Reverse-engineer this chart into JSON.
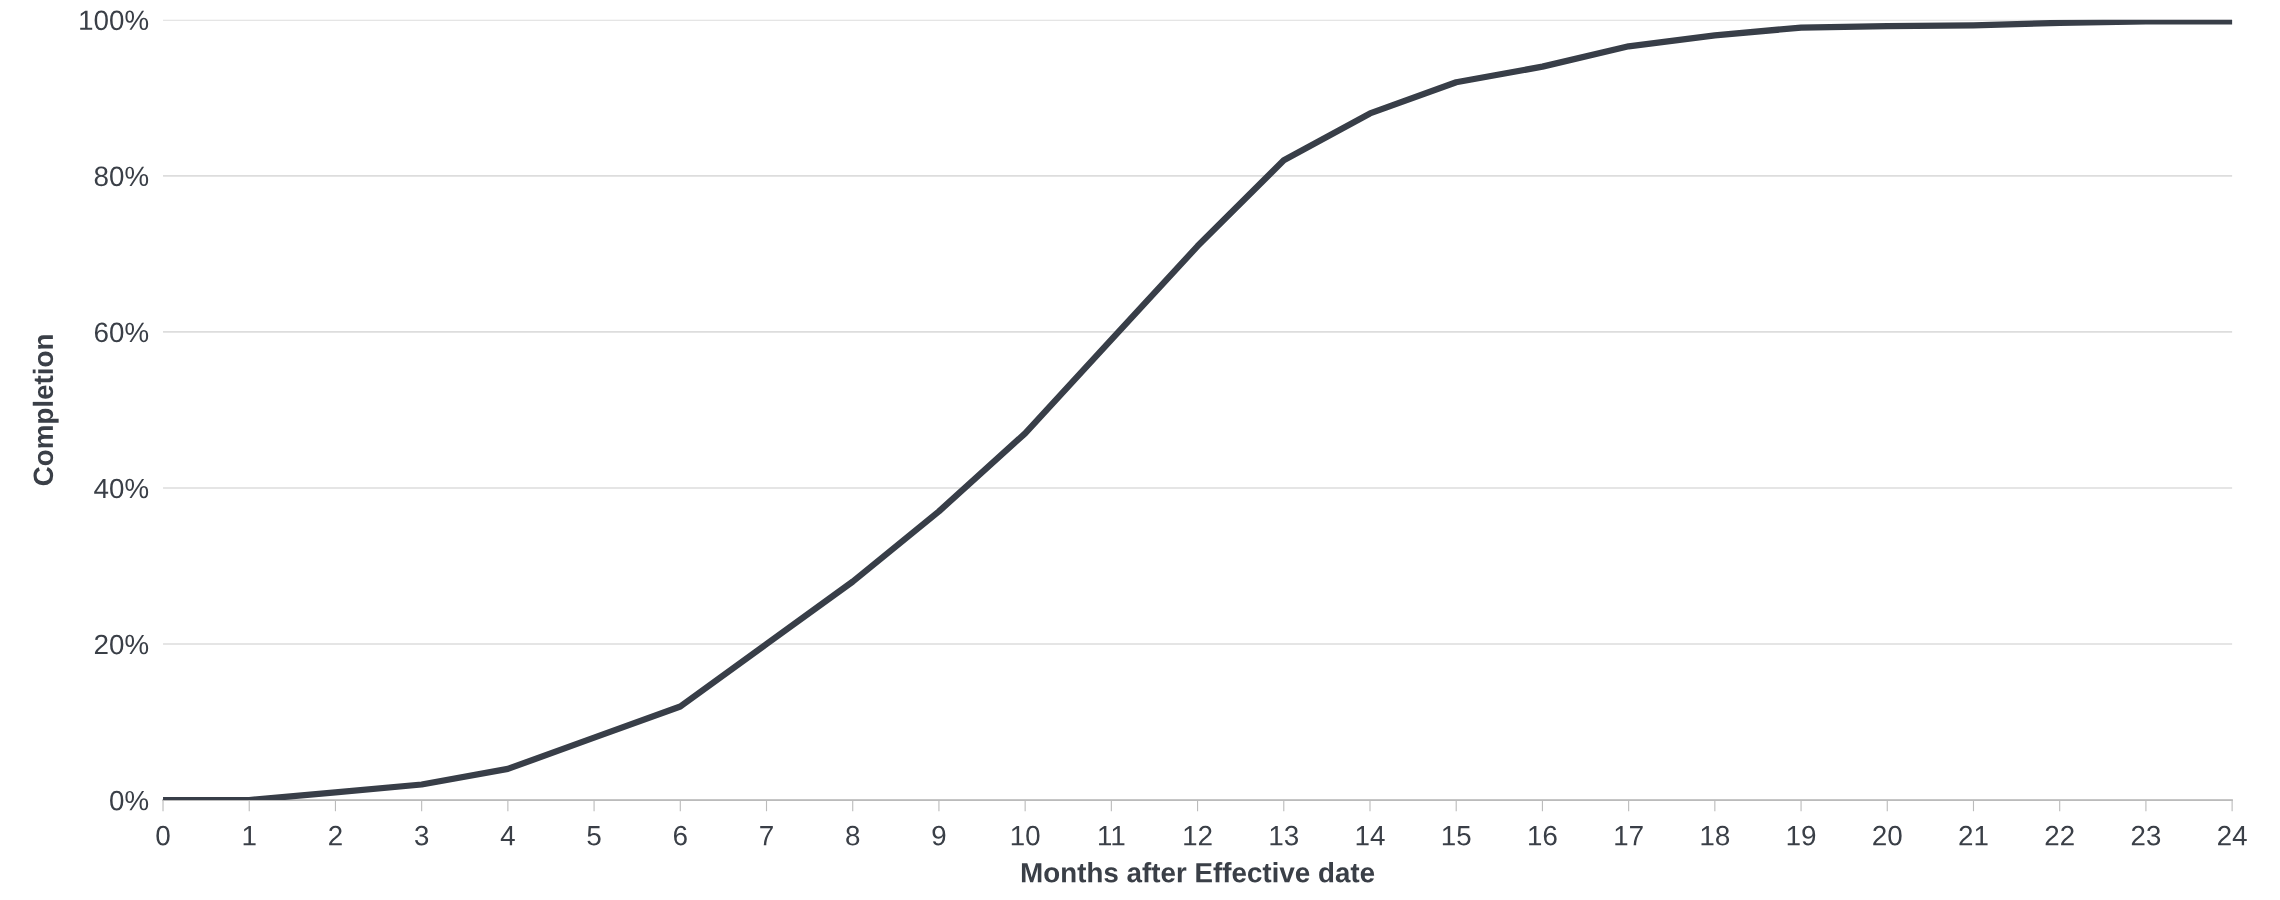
{
  "chart_data": {
    "type": "line",
    "xlabel": "Months after Effective date",
    "ylabel": "Completion",
    "x": [
      0,
      1,
      2,
      3,
      4,
      5,
      6,
      7,
      8,
      9,
      10,
      11,
      12,
      13,
      14,
      15,
      16,
      17,
      18,
      19,
      20,
      21,
      22,
      23,
      24
    ],
    "series": [
      {
        "color": "#383e48",
        "values": [
          0,
          0,
          1,
          2,
          4,
          8,
          12,
          20,
          28,
          37,
          47,
          59,
          71,
          82,
          88,
          92,
          94,
          96.6,
          98,
          99,
          99.2,
          99.3,
          99.6,
          99.8,
          99.8
        ]
      }
    ],
    "xlim": [
      0,
      24
    ],
    "xticks": [
      0,
      1,
      2,
      3,
      4,
      5,
      6,
      7,
      8,
      9,
      10,
      11,
      12,
      13,
      14,
      15,
      16,
      17,
      18,
      19,
      20,
      21,
      22,
      23,
      24
    ],
    "ylim": [
      0,
      100
    ],
    "yticks": [
      {
        "value": 0,
        "label": "0%"
      },
      {
        "value": 20,
        "label": "20%"
      },
      {
        "value": 40,
        "label": "40%"
      },
      {
        "value": 60,
        "label": "60%"
      },
      {
        "value": 80,
        "label": "80%"
      },
      {
        "value": 100,
        "label": "100%"
      }
    ],
    "grid": "y",
    "marker": "none",
    "line_style": "solid",
    "legend": false
  }
}
